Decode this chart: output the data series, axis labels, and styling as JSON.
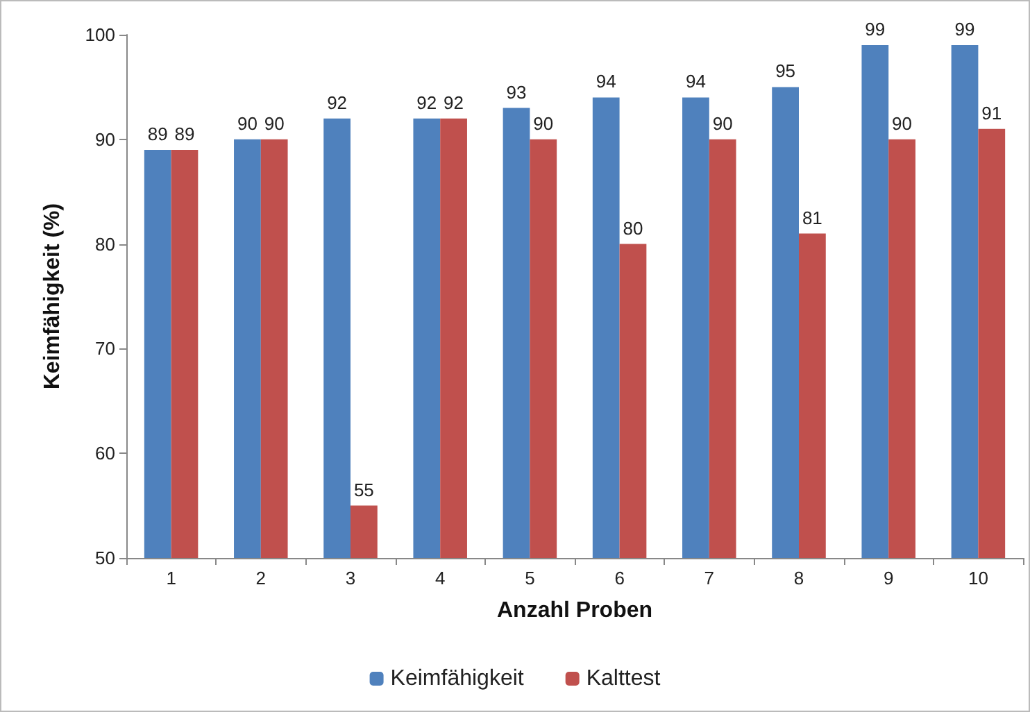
{
  "chart_data": {
    "type": "bar",
    "xlabel": "Anzahl Proben",
    "ylabel": "Keimfähigkeit (%)",
    "categories": [
      "1",
      "2",
      "3",
      "4",
      "5",
      "6",
      "7",
      "8",
      "9",
      "10"
    ],
    "series": [
      {
        "name": "Keimfähigkeit",
        "color": "#4f81bd",
        "values": [
          89,
          90,
          92,
          92,
          93,
          94,
          94,
          95,
          99,
          99
        ]
      },
      {
        "name": "Kalttest",
        "color": "#c0504d",
        "values": [
          89,
          90,
          55,
          92,
          90,
          80,
          90,
          81,
          90,
          91
        ]
      }
    ],
    "ylim": [
      50,
      100
    ],
    "yticks": [
      50,
      60,
      70,
      80,
      90,
      100
    ],
    "grid": false,
    "legend": "bottom",
    "data_labels": true
  }
}
